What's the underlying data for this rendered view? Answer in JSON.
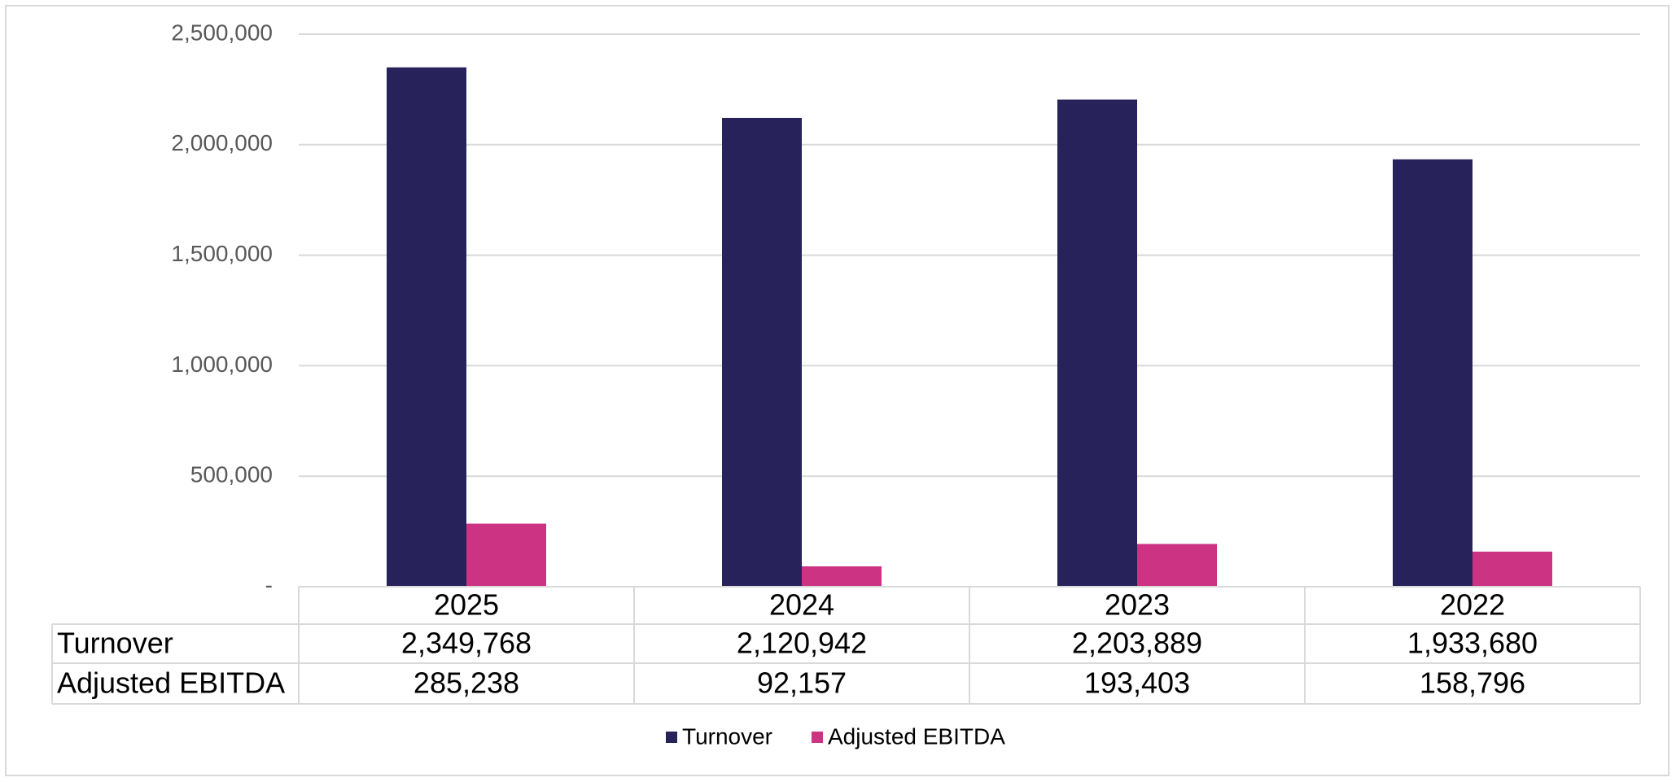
{
  "chart_data": {
    "type": "bar",
    "categories": [
      "2025",
      "2024",
      "2023",
      "2022"
    ],
    "series": [
      {
        "name": "Turnover",
        "values": [
          2349768,
          2120942,
          2203889,
          1933680
        ],
        "color": "#27235a"
      },
      {
        "name": "Adjusted EBITDA",
        "values": [
          285238,
          92157,
          193403,
          158796
        ],
        "color": "#cc3383"
      }
    ],
    "ylim": [
      0,
      2500000
    ],
    "yticks": [
      {
        "value": 0,
        "label": "-"
      },
      {
        "value": 500000,
        "label": "500,000"
      },
      {
        "value": 1000000,
        "label": "1,000,000"
      },
      {
        "value": 1500000,
        "label": "1,500,000"
      },
      {
        "value": 2000000,
        "label": "2,000,000"
      },
      {
        "value": 2500000,
        "label": "2,500,000"
      }
    ],
    "data_table": {
      "rows": [
        {
          "label": "Turnover",
          "values": [
            "2,349,768",
            "2,120,942",
            "2,203,889",
            "1,933,680"
          ]
        },
        {
          "label": "Adjusted EBITDA",
          "values": [
            "285,238",
            "92,157",
            "193,403",
            "158,796"
          ]
        }
      ]
    },
    "legend": {
      "position": "bottom",
      "items": [
        "Turnover",
        "Adjusted EBITDA"
      ]
    },
    "grid": true
  }
}
